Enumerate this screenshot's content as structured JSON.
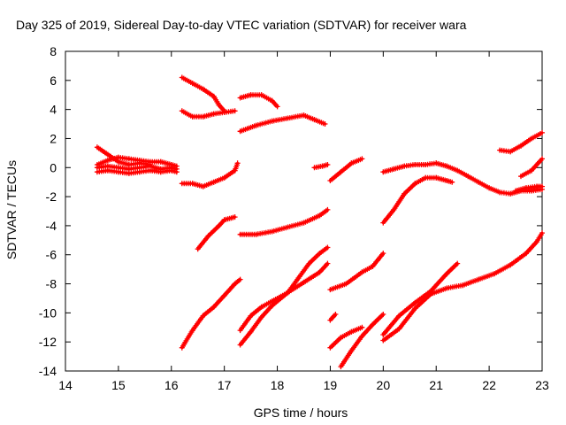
{
  "chart_data": {
    "type": "scatter",
    "title": "Day 325 of 2019, Sidereal Day-to-day VTEC variation (SDTVAR) for receiver wara",
    "xlabel": "GPS time / hours",
    "ylabel": "SDTVAR / TECUs",
    "xlim": [
      14,
      23
    ],
    "ylim": [
      -14,
      8
    ],
    "xticks": [
      14,
      15,
      16,
      17,
      18,
      19,
      20,
      21,
      22,
      23
    ],
    "yticks": [
      -14,
      -12,
      -10,
      -8,
      -6,
      -4,
      -2,
      0,
      2,
      4,
      6,
      8
    ],
    "grid": false,
    "legend": "none",
    "marker": "plus",
    "color": "#ff0000",
    "series": [
      {
        "points": [
          [
            14.6,
            0.2
          ],
          [
            14.8,
            0.5
          ],
          [
            15.0,
            0.7
          ],
          [
            15.2,
            0.6
          ],
          [
            15.4,
            0.5
          ],
          [
            15.6,
            0.4
          ],
          [
            15.8,
            0.4
          ],
          [
            16.0,
            0.2
          ],
          [
            16.1,
            0.1
          ]
        ]
      },
      {
        "points": [
          [
            14.6,
            0.0
          ],
          [
            14.8,
            0.1
          ],
          [
            15.0,
            0.0
          ],
          [
            15.2,
            -0.1
          ],
          [
            15.4,
            0.0
          ],
          [
            15.6,
            0.1
          ],
          [
            15.8,
            -0.1
          ],
          [
            16.0,
            0.0
          ],
          [
            16.1,
            -0.1
          ]
        ]
      },
      {
        "points": [
          [
            14.6,
            -0.3
          ],
          [
            14.8,
            -0.2
          ],
          [
            15.0,
            -0.3
          ],
          [
            15.2,
            -0.4
          ],
          [
            15.4,
            -0.3
          ],
          [
            15.6,
            -0.2
          ],
          [
            15.8,
            -0.3
          ],
          [
            16.0,
            -0.2
          ],
          [
            16.1,
            -0.3
          ]
        ]
      },
      {
        "points": [
          [
            14.6,
            1.4
          ],
          [
            14.8,
            0.9
          ],
          [
            15.0,
            0.4
          ],
          [
            15.2,
            0.2
          ],
          [
            15.4,
            0.3
          ],
          [
            15.6,
            0.2
          ]
        ]
      },
      {
        "points": [
          [
            16.2,
            6.2
          ],
          [
            16.4,
            5.8
          ],
          [
            16.6,
            5.4
          ],
          [
            16.8,
            4.9
          ],
          [
            16.9,
            4.3
          ],
          [
            17.0,
            3.9
          ]
        ]
      },
      {
        "points": [
          [
            16.2,
            3.9
          ],
          [
            16.4,
            3.5
          ],
          [
            16.6,
            3.5
          ],
          [
            16.8,
            3.7
          ],
          [
            17.0,
            3.8
          ],
          [
            17.2,
            3.9
          ]
        ]
      },
      {
        "points": [
          [
            16.2,
            -1.1
          ],
          [
            16.4,
            -1.1
          ],
          [
            16.6,
            -1.3
          ],
          [
            16.8,
            -1.0
          ],
          [
            17.0,
            -0.7
          ],
          [
            17.2,
            -0.2
          ],
          [
            17.25,
            0.3
          ]
        ]
      },
      {
        "points": [
          [
            16.5,
            -5.6
          ],
          [
            16.7,
            -4.7
          ],
          [
            16.9,
            -4.0
          ],
          [
            17.0,
            -3.6
          ],
          [
            17.2,
            -3.4
          ]
        ]
      },
      {
        "points": [
          [
            16.2,
            -12.4
          ],
          [
            16.4,
            -11.2
          ],
          [
            16.6,
            -10.2
          ],
          [
            16.8,
            -9.6
          ],
          [
            17.0,
            -8.8
          ],
          [
            17.2,
            -8.0
          ],
          [
            17.3,
            -7.7
          ]
        ]
      },
      {
        "points": [
          [
            17.3,
            4.8
          ],
          [
            17.5,
            5.0
          ],
          [
            17.7,
            5.0
          ],
          [
            17.9,
            4.6
          ],
          [
            18.0,
            4.2
          ]
        ]
      },
      {
        "points": [
          [
            17.3,
            2.5
          ],
          [
            17.6,
            2.9
          ],
          [
            17.9,
            3.2
          ],
          [
            18.2,
            3.4
          ],
          [
            18.5,
            3.6
          ],
          [
            18.7,
            3.3
          ],
          [
            18.9,
            3.0
          ]
        ]
      },
      {
        "points": [
          [
            17.3,
            -4.6
          ],
          [
            17.6,
            -4.6
          ],
          [
            17.9,
            -4.4
          ],
          [
            18.2,
            -4.1
          ],
          [
            18.5,
            -3.8
          ],
          [
            18.8,
            -3.3
          ],
          [
            18.95,
            -2.9
          ]
        ]
      },
      {
        "points": [
          [
            17.3,
            -11.2
          ],
          [
            17.5,
            -10.2
          ],
          [
            17.7,
            -9.6
          ],
          [
            17.9,
            -9.2
          ],
          [
            18.2,
            -8.6
          ],
          [
            18.5,
            -7.9
          ],
          [
            18.8,
            -7.2
          ],
          [
            18.95,
            -6.6
          ]
        ]
      },
      {
        "points": [
          [
            17.3,
            -12.2
          ],
          [
            17.5,
            -11.3
          ],
          [
            17.7,
            -10.3
          ],
          [
            17.9,
            -9.5
          ],
          [
            18.2,
            -8.6
          ],
          [
            18.4,
            -7.6
          ],
          [
            18.6,
            -6.6
          ],
          [
            18.8,
            -5.9
          ],
          [
            18.95,
            -5.5
          ]
        ]
      },
      {
        "points": [
          [
            18.7,
            0.0
          ],
          [
            18.85,
            0.1
          ],
          [
            18.95,
            0.2
          ]
        ]
      },
      {
        "points": [
          [
            19.0,
            -0.9
          ],
          [
            19.2,
            -0.3
          ],
          [
            19.4,
            0.3
          ],
          [
            19.6,
            0.6
          ]
        ]
      },
      {
        "points": [
          [
            19.0,
            -8.4
          ],
          [
            19.3,
            -8.0
          ],
          [
            19.6,
            -7.2
          ],
          [
            19.8,
            -6.8
          ],
          [
            20.0,
            -5.9
          ]
        ]
      },
      {
        "points": [
          [
            19.0,
            -10.5
          ],
          [
            19.1,
            -10.1
          ]
        ]
      },
      {
        "points": [
          [
            19.0,
            -12.4
          ],
          [
            19.2,
            -11.7
          ],
          [
            19.4,
            -11.3
          ],
          [
            19.6,
            -11.0
          ]
        ]
      },
      {
        "points": [
          [
            19.2,
            -13.7
          ],
          [
            19.4,
            -12.6
          ],
          [
            19.6,
            -11.6
          ],
          [
            19.8,
            -10.8
          ],
          [
            20.0,
            -10.1
          ]
        ]
      },
      {
        "points": [
          [
            20.0,
            -3.8
          ],
          [
            20.2,
            -2.9
          ],
          [
            20.4,
            -1.8
          ],
          [
            20.6,
            -1.1
          ],
          [
            20.8,
            -0.7
          ],
          [
            21.0,
            -0.7
          ],
          [
            21.2,
            -0.9
          ],
          [
            21.3,
            -1.0
          ]
        ]
      },
      {
        "points": [
          [
            20.0,
            -0.3
          ],
          [
            20.2,
            -0.1
          ],
          [
            20.4,
            0.1
          ],
          [
            20.6,
            0.2
          ],
          [
            20.8,
            0.2
          ],
          [
            21.0,
            0.3
          ],
          [
            21.2,
            0.1
          ],
          [
            21.4,
            -0.2
          ],
          [
            21.6,
            -0.6
          ],
          [
            21.8,
            -1.0
          ],
          [
            22.0,
            -1.4
          ],
          [
            22.2,
            -1.7
          ],
          [
            22.4,
            -1.8
          ],
          [
            22.6,
            -1.6
          ],
          [
            22.8,
            -1.6
          ],
          [
            23.0,
            -1.5
          ]
        ]
      },
      {
        "points": [
          [
            20.0,
            -11.5
          ],
          [
            20.3,
            -10.2
          ],
          [
            20.6,
            -9.3
          ],
          [
            20.9,
            -8.5
          ],
          [
            21.2,
            -7.3
          ],
          [
            21.4,
            -6.6
          ]
        ]
      },
      {
        "points": [
          [
            20.0,
            -11.9
          ],
          [
            20.3,
            -11.1
          ],
          [
            20.6,
            -9.7
          ],
          [
            20.9,
            -8.7
          ],
          [
            21.2,
            -8.3
          ],
          [
            21.5,
            -8.1
          ],
          [
            21.8,
            -7.7
          ],
          [
            22.1,
            -7.3
          ],
          [
            22.4,
            -6.7
          ],
          [
            22.7,
            -5.9
          ],
          [
            22.9,
            -5.1
          ],
          [
            23.0,
            -4.5
          ]
        ]
      },
      {
        "points": [
          [
            22.2,
            1.2
          ],
          [
            22.4,
            1.1
          ],
          [
            22.6,
            1.5
          ],
          [
            22.8,
            2.0
          ],
          [
            23.0,
            2.4
          ]
        ]
      },
      {
        "points": [
          [
            22.6,
            -0.6
          ],
          [
            22.8,
            -0.2
          ],
          [
            23.0,
            0.6
          ]
        ]
      },
      {
        "points": [
          [
            22.5,
            -1.6
          ],
          [
            22.7,
            -1.4
          ],
          [
            22.9,
            -1.3
          ],
          [
            23.0,
            -1.3
          ]
        ]
      }
    ]
  }
}
